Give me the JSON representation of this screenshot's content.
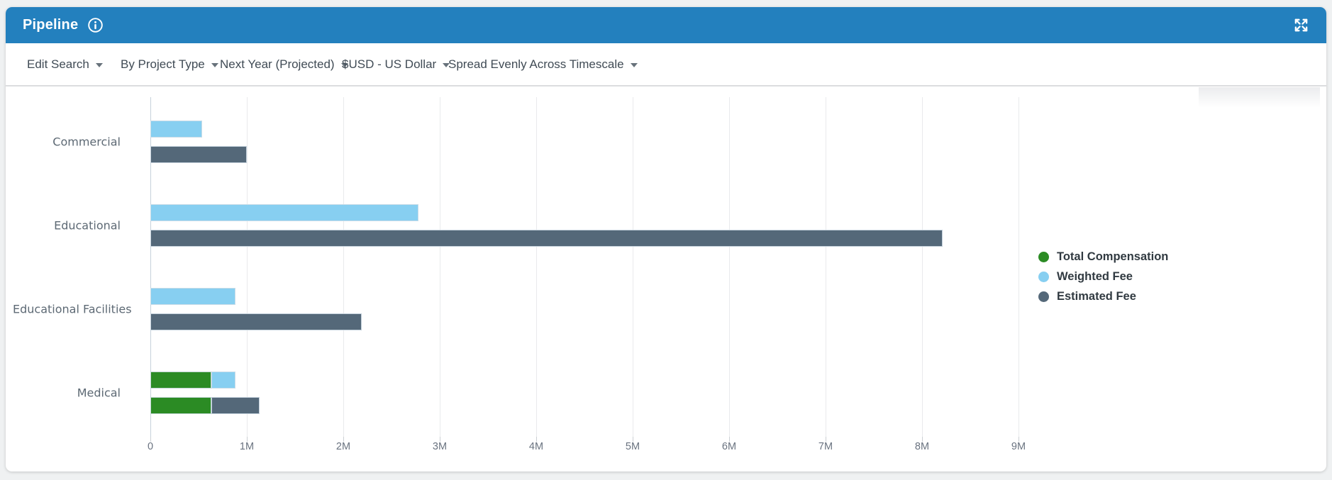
{
  "widget": {
    "title": "Pipeline",
    "icons": {
      "info": "info-circle-icon",
      "expand": "expand-arrows-icon",
      "dropdown_caret": "chevron-down-icon"
    },
    "header_color": "#2380be"
  },
  "filters": {
    "edit_search": "Edit Search",
    "dropdowns": [
      "By Project Type",
      "Next Year (Projected)",
      "$USD - US Dollar",
      "Spread Evenly Across Timescale"
    ]
  },
  "legend": [
    {
      "label": "Total Compensation",
      "color": "#2b8b24"
    },
    {
      "label": "Weighted Fee",
      "color": "#87cff1"
    },
    {
      "label": "Estimated Fee",
      "color": "#546879"
    }
  ],
  "chart_data": {
    "type": "bar",
    "orientation": "horizontal",
    "value_unit": "USD millions",
    "x_ticks": [
      "0",
      "1M",
      "2M",
      "3M",
      "4M",
      "5M",
      "6M",
      "7M",
      "8M",
      "9M"
    ],
    "x_max_m": 9.4,
    "grid": true,
    "legend_position": "right",
    "series": [
      "Total Compensation",
      "Weighted Fee",
      "Estimated Fee"
    ],
    "series_colors": {
      "Total Compensation": "#2b8b24",
      "Weighted Fee": "#87cff1",
      "Estimated Fee": "#546879"
    },
    "categories": [
      "Commercial",
      "Educational",
      "Educational Facilities",
      "Medical"
    ],
    "rows": [
      {
        "label": "Commercial",
        "bars": [
          [
            {
              "series": "Weighted Fee",
              "value_m": 0.54
            }
          ],
          [
            {
              "series": "Estimated Fee",
              "value_m": 1.0
            }
          ]
        ]
      },
      {
        "label": "Educational",
        "bars": [
          [
            {
              "series": "Weighted Fee",
              "value_m": 2.78
            }
          ],
          [
            {
              "series": "Estimated Fee",
              "value_m": 8.21
            }
          ]
        ]
      },
      {
        "label": "Educational Facilities",
        "bars": [
          [
            {
              "series": "Weighted Fee",
              "value_m": 0.88
            }
          ],
          [
            {
              "series": "Estimated Fee",
              "value_m": 2.19
            }
          ]
        ]
      },
      {
        "label": "Medical",
        "bars": [
          [
            {
              "series": "Total Compensation",
              "value_m": 0.63
            },
            {
              "series": "Weighted Fee",
              "value_m": 0.25
            }
          ],
          [
            {
              "series": "Total Compensation",
              "value_m": 0.63
            },
            {
              "series": "Estimated Fee",
              "value_m": 0.5
            }
          ]
        ]
      }
    ]
  }
}
